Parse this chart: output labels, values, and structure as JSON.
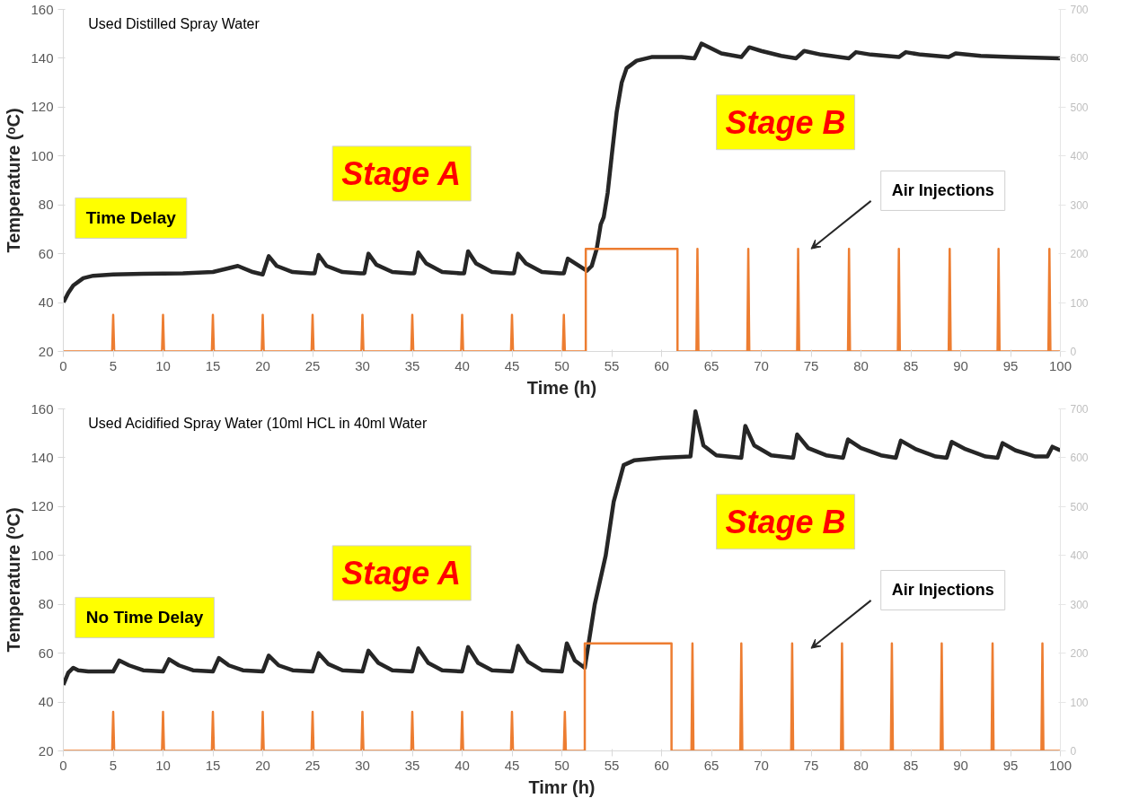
{
  "chart_data": [
    {
      "type": "line",
      "subtitle": "Used Distilled Spray Water",
      "xlabel": "Time (h)",
      "ylabel": "Temperature (ᵒC)",
      "xlim": [
        0,
        100
      ],
      "xticks": [
        0,
        5,
        10,
        15,
        20,
        25,
        30,
        35,
        40,
        45,
        50,
        55,
        60,
        65,
        70,
        75,
        80,
        85,
        90,
        95,
        100
      ],
      "ylim": [
        20,
        160
      ],
      "yticks": [
        20,
        40,
        60,
        80,
        100,
        120,
        140,
        160
      ],
      "y2lim": [
        0,
        700
      ],
      "y2ticks": [
        0,
        100,
        200,
        300,
        400,
        500,
        600,
        700
      ],
      "grid": false,
      "line_style": "solid",
      "annotations": [
        "Time Delay",
        "Stage A",
        "Stage B",
        "Air Injections"
      ],
      "series": [
        {
          "color": "#262626",
          "x": [
            0,
            0.5,
            1,
            2,
            3,
            5,
            8,
            12,
            15,
            16.5,
            17.5,
            19,
            20,
            20.6,
            21.4,
            23,
            24.8,
            25.2,
            25.6,
            26.4,
            28,
            29.8,
            30.2,
            30.6,
            31.4,
            33,
            34.8,
            35.2,
            35.6,
            36.4,
            38,
            39.8,
            40.2,
            40.6,
            41.4,
            43,
            44.8,
            45.2,
            45.6,
            46.4,
            48,
            49.8,
            50.2,
            50.6,
            52.5,
            53,
            53.5,
            53.9,
            54.2,
            54.6,
            55,
            55.5,
            56,
            56.5,
            57.5,
            59,
            62,
            63.3,
            64,
            65,
            66,
            68,
            68.8,
            70,
            72,
            73.5,
            74.3,
            76,
            78.8,
            79.5,
            81,
            83.8,
            84.5,
            86,
            88.8,
            89.5,
            92,
            95,
            100
          ],
          "values": [
            40,
            44,
            47,
            50,
            51,
            51.5,
            51.8,
            52,
            52.5,
            54,
            55,
            52.5,
            51.5,
            59,
            55,
            52.5,
            52,
            52,
            59.5,
            55,
            52.5,
            52,
            52,
            60,
            55.5,
            52.5,
            52,
            52,
            60.5,
            56,
            52.5,
            52,
            52,
            61,
            56,
            52.5,
            52,
            52,
            60,
            56,
            52.5,
            52,
            52,
            58,
            53,
            55,
            62,
            72,
            75,
            85,
            100,
            118,
            130,
            136,
            139,
            140.5,
            140.5,
            140,
            146,
            144,
            142,
            140.5,
            144.5,
            143,
            141,
            140,
            143,
            141.5,
            140,
            142.5,
            141.5,
            140.5,
            142.5,
            141.5,
            140.5,
            142,
            141,
            140.5,
            140
          ]
        },
        {
          "type": "line",
          "color": "#ed7d31",
          "axis": "y2",
          "x": [
            0,
            4.9,
            5,
            5.1,
            9.9,
            10,
            10.1,
            14.9,
            15,
            15.1,
            19.9,
            20,
            20.1,
            24.9,
            25,
            25.1,
            29.9,
            30,
            30.1,
            34.9,
            35,
            35.1,
            39.9,
            40,
            40.1,
            44.9,
            45,
            45.1,
            50.1,
            50.2,
            50.3,
            52.4,
            52.4,
            61.6,
            61.6,
            63.5,
            63.6,
            63.7,
            68.6,
            68.7,
            68.8,
            73.6,
            73.7,
            73.8,
            78.7,
            78.8,
            78.9,
            83.7,
            83.8,
            83.9,
            88.8,
            88.9,
            89,
            93.7,
            93.8,
            93.9,
            98.8,
            98.9,
            99,
            100
          ],
          "values": [
            0,
            0,
            75,
            0,
            0,
            75,
            0,
            0,
            75,
            0,
            0,
            75,
            0,
            0,
            75,
            0,
            0,
            75,
            0,
            0,
            75,
            0,
            0,
            75,
            0,
            0,
            75,
            0,
            0,
            75,
            0,
            0,
            210,
            210,
            0,
            0,
            210,
            0,
            0,
            210,
            0,
            0,
            210,
            0,
            0,
            210,
            0,
            0,
            210,
            0,
            0,
            210,
            0,
            0,
            210,
            0,
            0,
            210,
            0,
            0
          ]
        }
      ]
    },
    {
      "type": "line",
      "subtitle": "Used Acidified Spray Water (10ml HCL in 40ml Water",
      "xlabel": "Timr (h)",
      "ylabel": "Temperature (ᵒC)",
      "xlim": [
        0,
        100
      ],
      "xticks": [
        0,
        5,
        10,
        15,
        20,
        25,
        30,
        35,
        40,
        45,
        50,
        55,
        60,
        65,
        70,
        75,
        80,
        85,
        90,
        95,
        100
      ],
      "ylim": [
        20,
        160
      ],
      "yticks": [
        20,
        40,
        60,
        80,
        100,
        120,
        140,
        160
      ],
      "y2lim": [
        0,
        700
      ],
      "y2ticks": [
        0,
        100,
        200,
        300,
        400,
        500,
        600,
        700
      ],
      "grid": false,
      "line_style": "solid",
      "annotations": [
        "No Time Delay",
        "Stage A",
        "Stage B",
        "Air Injections"
      ],
      "series": [
        {
          "color": "#262626",
          "x": [
            0,
            0.5,
            1,
            1.5,
            2.5,
            5,
            5.6,
            6.6,
            8,
            10,
            10.6,
            11.6,
            13,
            15,
            15.6,
            16.6,
            18,
            20,
            20.6,
            21.6,
            23,
            25,
            25.6,
            26.6,
            28,
            30,
            30.6,
            31.6,
            33,
            35,
            35.6,
            36.6,
            38,
            40,
            40.6,
            41.6,
            43,
            45,
            45.6,
            46.6,
            48,
            50,
            50.5,
            51.3,
            52.3,
            53.3,
            54.4,
            55.2,
            56.2,
            57.3,
            60,
            62.9,
            63.4,
            64.2,
            65.5,
            68,
            68.4,
            69.3,
            71,
            73.2,
            73.6,
            74.7,
            76.5,
            78.2,
            78.7,
            80,
            82,
            83.5,
            84,
            85.5,
            87.5,
            88.6,
            89.1,
            90.5,
            92.5,
            93.7,
            94.2,
            95.5,
            97.5,
            98.7,
            99.2,
            100
          ],
          "values": [
            47,
            52,
            54,
            53,
            52.5,
            52.5,
            57,
            55,
            53,
            52.5,
            57.5,
            55,
            53,
            52.5,
            58,
            55,
            53,
            52.5,
            59,
            55,
            53,
            52.5,
            60,
            55.5,
            53,
            52.5,
            61,
            56,
            53,
            52.5,
            62,
            56,
            53,
            52.5,
            62.5,
            56,
            53,
            52.5,
            63,
            56.5,
            53,
            52.5,
            64,
            57,
            54,
            80,
            100,
            122,
            137,
            139,
            140,
            140.5,
            159,
            145,
            141,
            140,
            153,
            145,
            141,
            140,
            149.5,
            144,
            141,
            140,
            147.5,
            144,
            141,
            140,
            147,
            143.5,
            140.5,
            140,
            146.5,
            143.5,
            140.5,
            140,
            146,
            143,
            140.5,
            140.5,
            144.5,
            143
          ]
        },
        {
          "type": "line",
          "color": "#ed7d31",
          "axis": "y2",
          "x": [
            0,
            4.9,
            5,
            5.1,
            9.9,
            10,
            10.1,
            14.9,
            15,
            15.1,
            19.9,
            20,
            20.1,
            24.9,
            25,
            25.1,
            29.9,
            30,
            30.1,
            34.9,
            35,
            35.1,
            39.9,
            40,
            40.1,
            44.9,
            45,
            45.1,
            50.2,
            50.3,
            50.4,
            52.3,
            52.3,
            61,
            61,
            63,
            63.1,
            63.2,
            67.9,
            68,
            68.1,
            73,
            73.1,
            73.2,
            78,
            78.1,
            78.2,
            83,
            83.1,
            83.2,
            88,
            88.1,
            88.2,
            93.1,
            93.2,
            93.3,
            98.1,
            98.2,
            98.3,
            100
          ],
          "values": [
            0,
            0,
            80,
            0,
            0,
            80,
            0,
            0,
            80,
            0,
            0,
            80,
            0,
            0,
            80,
            0,
            0,
            80,
            0,
            0,
            80,
            0,
            0,
            80,
            0,
            0,
            80,
            0,
            0,
            80,
            0,
            0,
            220,
            220,
            0,
            0,
            220,
            0,
            0,
            220,
            0,
            0,
            220,
            0,
            0,
            220,
            0,
            0,
            220,
            0,
            0,
            220,
            0,
            0,
            220,
            0,
            0,
            220,
            0,
            0
          ]
        }
      ]
    }
  ]
}
